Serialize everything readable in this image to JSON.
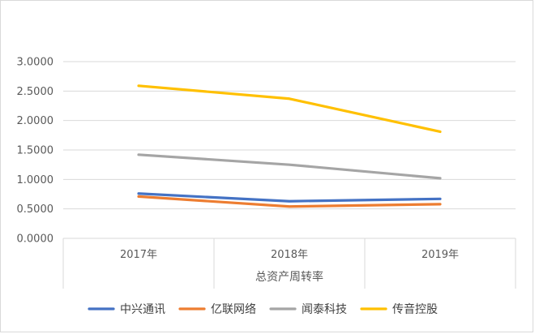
{
  "chart_data": {
    "type": "line",
    "categories": [
      "2017年",
      "2018年",
      "2019年"
    ],
    "xlabel": "总资产周转率",
    "ylabel": "",
    "ylim": [
      0,
      3
    ],
    "yticks": [
      "0.0000",
      "0.5000",
      "1.0000",
      "1.5000",
      "2.0000",
      "2.5000",
      "3.0000"
    ],
    "grid": true,
    "legend_position": "bottom",
    "series": [
      {
        "name": "中兴通讯",
        "color": "#4472c4",
        "values": [
          0.76,
          0.63,
          0.67
        ]
      },
      {
        "name": "亿联网络",
        "color": "#ed7d31",
        "values": [
          0.71,
          0.54,
          0.58
        ]
      },
      {
        "name": "闻泰科技",
        "color": "#a5a5a5",
        "values": [
          1.42,
          1.25,
          1.02
        ]
      },
      {
        "name": "传音控股",
        "color": "#ffc000",
        "values": [
          2.59,
          2.37,
          1.81
        ]
      }
    ]
  }
}
